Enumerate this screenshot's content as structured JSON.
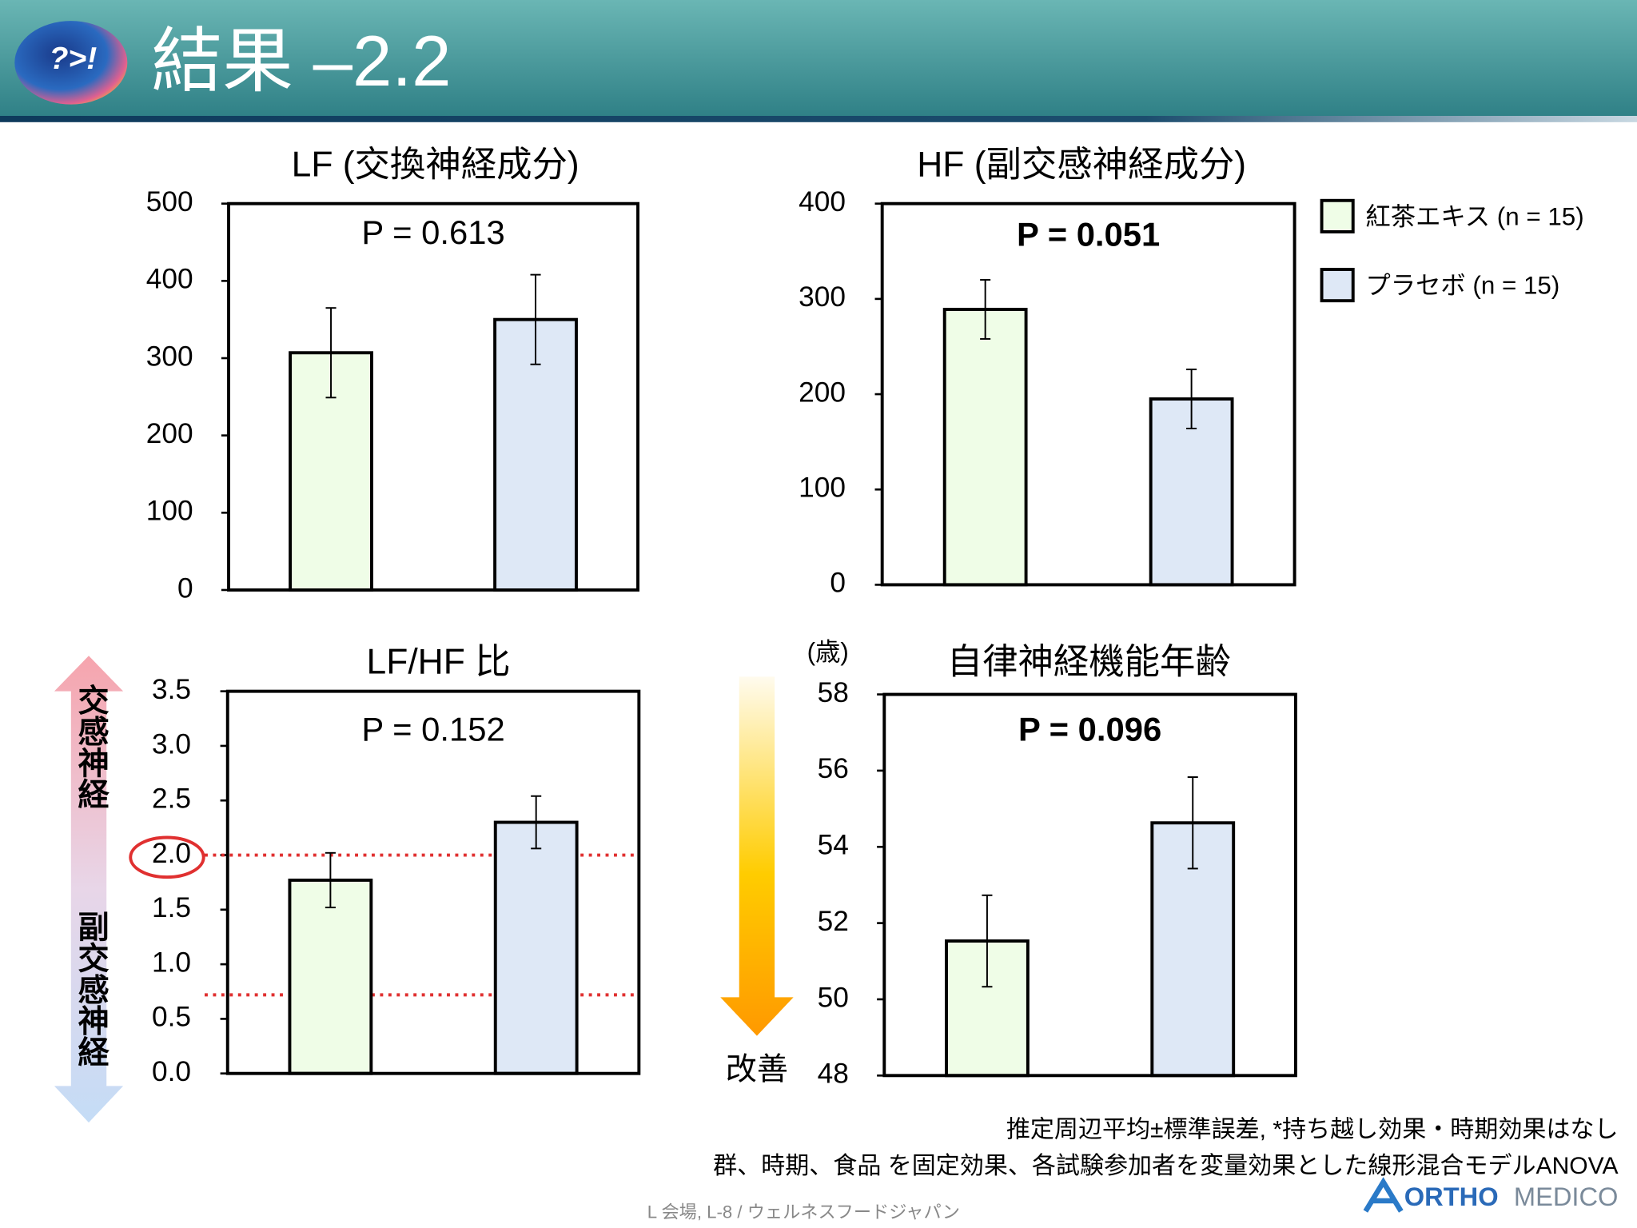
{
  "header": {
    "logo_text": "?>!",
    "title": "結果 –2.2"
  },
  "legend": [
    {
      "name": "紅茶エキス (n = 15)",
      "color": "#effde7"
    },
    {
      "name": "プラセボ (n = 15)",
      "color": "#dee8f6"
    }
  ],
  "chart_data": [
    {
      "type": "bar",
      "title": "LF (交換神経成分)",
      "annotation": "P = 0.613",
      "annotation_bold": false,
      "values": [
        307,
        350
      ],
      "errors": [
        58,
        58
      ],
      "ylim": [
        0,
        500
      ],
      "yticks": [
        0,
        100,
        200,
        300,
        400,
        500
      ]
    },
    {
      "type": "bar",
      "title": "HF (副交感神経成分)",
      "annotation": "P = 0.051",
      "annotation_bold": true,
      "values": [
        289,
        195
      ],
      "errors": [
        31,
        31
      ],
      "ylim": [
        0,
        400
      ],
      "yticks": [
        0,
        100,
        200,
        300,
        400
      ]
    },
    {
      "type": "bar",
      "title": "LF/HF 比",
      "annotation": "P = 0.152",
      "annotation_bold": false,
      "values": [
        1.77,
        2.3
      ],
      "errors": [
        0.25,
        0.24
      ],
      "ylim": [
        0,
        3.5
      ],
      "yticks": [
        {
          "value": 0,
          "label": "0.0"
        },
        0.5,
        {
          "value": 1,
          "label": "1.0"
        },
        1.5,
        {
          "value": 2,
          "label": "2.0"
        },
        2.5,
        {
          "value": 3,
          "label": "3.0"
        },
        3.5
      ],
      "ref_lines": [
        2,
        0.72
      ],
      "side_labels": [
        "交感神経",
        "副交感神経"
      ]
    },
    {
      "type": "bar",
      "title": "自律神経機能年齢",
      "annotation": "P = 0.096",
      "annotation_bold": true,
      "unit": "(歳)",
      "values": [
        51.53,
        54.63
      ],
      "errors": [
        1.2,
        1.2
      ],
      "ylim": [
        48,
        58
      ],
      "yticks": [
        48,
        50,
        52,
        54,
        56,
        58
      ],
      "side_labels": [
        "改善"
      ]
    }
  ],
  "footnotes": [
    "推定周辺平均±標準誤差, *持ち越し効果・時期効果はなし",
    "群、時期、食品 を固定効果、各試験参加者を変量効果とした線形混合モデルANOVA"
  ],
  "brand": {
    "name": "ORTHO",
    "suffix": "MEDICO"
  },
  "source": "L 会場, L-8 / ウェルネスフードジャパン"
}
